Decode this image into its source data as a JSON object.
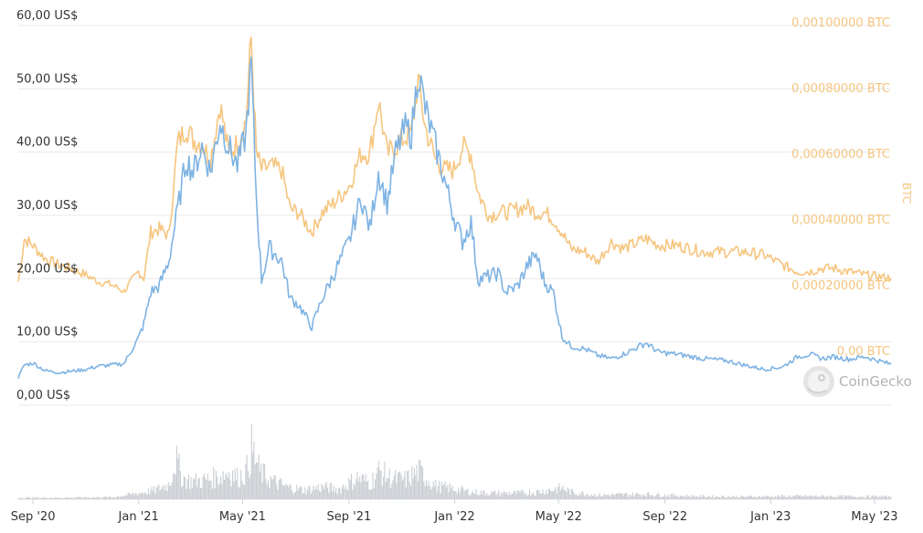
{
  "chart_data": {
    "type": "line",
    "title": "",
    "xlabel": "",
    "ylabel_left": "",
    "ylabel_right": "BTC",
    "watermark": "CoinGecko",
    "colors": {
      "usd_line": "#7eb3e3",
      "btc_line": "#f6c57f",
      "volume_bars": "#c9cdd2",
      "grid": "#e9e9e9",
      "left_tick_text": "#333333",
      "right_tick_text": "#f6c57f"
    },
    "x_range": [
      "2020-08-15",
      "2023-05-20"
    ],
    "x_ticks": [
      {
        "label": "Sep '20",
        "date": "2020-09-01"
      },
      {
        "label": "Jan '21",
        "date": "2021-01-01"
      },
      {
        "label": "May '21",
        "date": "2021-05-01"
      },
      {
        "label": "Sep '21",
        "date": "2021-09-01"
      },
      {
        "label": "Jan '22",
        "date": "2022-01-01"
      },
      {
        "label": "May '22",
        "date": "2022-05-01"
      },
      {
        "label": "Sep '22",
        "date": "2022-09-01"
      },
      {
        "label": "Jan '23",
        "date": "2023-01-01"
      },
      {
        "label": "May '23",
        "date": "2023-05-01"
      }
    ],
    "y_left": {
      "ylim": [
        0,
        60
      ],
      "ticks": [
        {
          "value": 0,
          "label": "0,00 US$"
        },
        {
          "value": 10,
          "label": "10,00 US$"
        },
        {
          "value": 20,
          "label": "20,00 US$"
        },
        {
          "value": 30,
          "label": "30,00 US$"
        },
        {
          "value": 40,
          "label": "40,00 US$"
        },
        {
          "value": 50,
          "label": "50,00 US$"
        },
        {
          "value": 60,
          "label": "60,00 US$"
        }
      ]
    },
    "y_right": {
      "ylim": [
        0,
        0.001
      ],
      "ticks": [
        {
          "value": 0,
          "label": "0,00 BTC"
        },
        {
          "value": 0.0002,
          "label": "0,00020000 BTC"
        },
        {
          "value": 0.0004,
          "label": "0,00040000 BTC"
        },
        {
          "value": 0.0006,
          "label": "0,00060000 BTC"
        },
        {
          "value": 0.0008,
          "label": "0,00080000 BTC"
        },
        {
          "value": 0.001,
          "label": "0,00100000 BTC"
        }
      ]
    },
    "series": [
      {
        "key": "usd",
        "axis": "left",
        "points": [
          [
            "2020-08-15",
            3.5
          ],
          [
            "2020-08-22",
            5.5
          ],
          [
            "2020-09-01",
            5.8
          ],
          [
            "2020-09-15",
            4.6
          ],
          [
            "2020-10-01",
            4.3
          ],
          [
            "2020-10-15",
            4.5
          ],
          [
            "2020-11-01",
            4.8
          ],
          [
            "2020-11-15",
            5.3
          ],
          [
            "2020-12-01",
            5.5
          ],
          [
            "2020-12-15",
            5.7
          ],
          [
            "2021-01-01",
            9.8
          ],
          [
            "2021-01-07",
            12.0
          ],
          [
            "2021-01-15",
            17.0
          ],
          [
            "2021-01-25",
            18.0
          ],
          [
            "2021-02-05",
            22.0
          ],
          [
            "2021-02-15",
            30.0
          ],
          [
            "2021-02-25",
            38.0
          ],
          [
            "2021-03-05",
            36.0
          ],
          [
            "2021-03-15",
            40.0
          ],
          [
            "2021-03-25",
            36.0
          ],
          [
            "2021-04-05",
            44.0
          ],
          [
            "2021-04-15",
            40.0
          ],
          [
            "2021-04-25",
            37.0
          ],
          [
            "2021-05-05",
            42.0
          ],
          [
            "2021-05-11",
            53.0
          ],
          [
            "2021-05-17",
            32.0
          ],
          [
            "2021-05-23",
            19.0
          ],
          [
            "2021-06-01",
            24.0
          ],
          [
            "2021-06-15",
            22.0
          ],
          [
            "2021-06-25",
            16.0
          ],
          [
            "2021-07-05",
            15.0
          ],
          [
            "2021-07-20",
            11.5
          ],
          [
            "2021-08-01",
            16.0
          ],
          [
            "2021-08-15",
            20.0
          ],
          [
            "2021-09-01",
            25.0
          ],
          [
            "2021-09-15",
            32.0
          ],
          [
            "2021-09-25",
            27.0
          ],
          [
            "2021-10-05",
            36.0
          ],
          [
            "2021-10-15",
            31.0
          ],
          [
            "2021-10-25",
            39.0
          ],
          [
            "2021-11-05",
            43.0
          ],
          [
            "2021-11-12",
            42.0
          ],
          [
            "2021-11-20",
            52.0
          ],
          [
            "2021-11-28",
            46.0
          ],
          [
            "2021-12-10",
            40.0
          ],
          [
            "2021-12-20",
            35.0
          ],
          [
            "2021-12-31",
            29.0
          ],
          [
            "2022-01-10",
            25.0
          ],
          [
            "2022-01-20",
            28.0
          ],
          [
            "2022-01-28",
            19.0
          ],
          [
            "2022-02-10",
            19.5
          ],
          [
            "2022-02-20",
            20.0
          ],
          [
            "2022-03-01",
            17.0
          ],
          [
            "2022-03-15",
            18.0
          ],
          [
            "2022-03-25",
            21.0
          ],
          [
            "2022-04-05",
            23.0
          ],
          [
            "2022-04-15",
            18.5
          ],
          [
            "2022-04-25",
            17.0
          ],
          [
            "2022-05-05",
            10.0
          ],
          [
            "2022-05-15",
            8.5
          ],
          [
            "2022-06-01",
            8.0
          ],
          [
            "2022-06-15",
            7.0
          ],
          [
            "2022-07-01",
            6.5
          ],
          [
            "2022-07-15",
            7.2
          ],
          [
            "2022-08-10",
            9.0
          ],
          [
            "2022-08-25",
            7.5
          ],
          [
            "2022-09-15",
            7.2
          ],
          [
            "2022-10-15",
            6.5
          ],
          [
            "2022-11-10",
            6.2
          ],
          [
            "2022-12-01",
            5.5
          ],
          [
            "2022-12-25",
            4.8
          ],
          [
            "2023-01-15",
            5.2
          ],
          [
            "2023-02-01",
            6.8
          ],
          [
            "2023-02-15",
            7.2
          ],
          [
            "2023-03-01",
            6.5
          ],
          [
            "2023-03-15",
            6.8
          ],
          [
            "2023-04-01",
            6.4
          ],
          [
            "2023-04-20",
            6.8
          ],
          [
            "2023-05-20",
            5.6
          ]
        ]
      },
      {
        "key": "btc",
        "axis": "right",
        "points": [
          [
            "2020-08-15",
            0.00021
          ],
          [
            "2020-08-22",
            0.00034
          ],
          [
            "2020-09-01",
            0.00032
          ],
          [
            "2020-09-15",
            0.00028
          ],
          [
            "2020-10-01",
            0.00026
          ],
          [
            "2020-10-15",
            0.00025
          ],
          [
            "2020-11-01",
            0.00023
          ],
          [
            "2020-11-15",
            0.00021
          ],
          [
            "2020-12-01",
            0.0002
          ],
          [
            "2020-12-15",
            0.00018
          ],
          [
            "2021-01-01",
            0.00024
          ],
          [
            "2021-01-07",
            0.00022
          ],
          [
            "2021-01-15",
            0.00036
          ],
          [
            "2021-01-25",
            0.00037
          ],
          [
            "2021-02-05",
            0.00035
          ],
          [
            "2021-02-15",
            0.00063
          ],
          [
            "2021-02-25",
            0.00068
          ],
          [
            "2021-03-05",
            0.00064
          ],
          [
            "2021-03-15",
            0.00063
          ],
          [
            "2021-03-25",
            0.00058
          ],
          [
            "2021-04-05",
            0.00075
          ],
          [
            "2021-04-15",
            0.0006
          ],
          [
            "2021-04-25",
            0.00063
          ],
          [
            "2021-05-05",
            0.0007
          ],
          [
            "2021-05-11",
            0.00095
          ],
          [
            "2021-05-17",
            0.0006
          ],
          [
            "2021-05-23",
            0.00055
          ],
          [
            "2021-06-01",
            0.00056
          ],
          [
            "2021-06-15",
            0.00055
          ],
          [
            "2021-06-25",
            0.00043
          ],
          [
            "2021-07-05",
            0.00042
          ],
          [
            "2021-07-20",
            0.00036
          ],
          [
            "2021-08-01",
            0.00042
          ],
          [
            "2021-08-15",
            0.00045
          ],
          [
            "2021-09-01",
            0.0005
          ],
          [
            "2021-09-15",
            0.0006
          ],
          [
            "2021-09-25",
            0.0006
          ],
          [
            "2021-10-05",
            0.00076
          ],
          [
            "2021-10-15",
            0.0006
          ],
          [
            "2021-10-25",
            0.00062
          ],
          [
            "2021-11-05",
            0.00065
          ],
          [
            "2021-11-12",
            0.00066
          ],
          [
            "2021-11-20",
            0.00082
          ],
          [
            "2021-11-28",
            0.00068
          ],
          [
            "2021-12-10",
            0.00058
          ],
          [
            "2021-12-20",
            0.00055
          ],
          [
            "2021-12-31",
            0.00055
          ],
          [
            "2022-01-10",
            0.00062
          ],
          [
            "2022-01-20",
            0.0006
          ],
          [
            "2022-01-28",
            0.00048
          ],
          [
            "2022-02-10",
            0.00041
          ],
          [
            "2022-02-20",
            0.00042
          ],
          [
            "2022-03-01",
            0.00042
          ],
          [
            "2022-03-15",
            0.00043
          ],
          [
            "2022-03-25",
            0.00044
          ],
          [
            "2022-04-05",
            0.00042
          ],
          [
            "2022-04-15",
            0.00042
          ],
          [
            "2022-04-25",
            0.0004
          ],
          [
            "2022-05-05",
            0.00036
          ],
          [
            "2022-05-15",
            0.00031
          ],
          [
            "2022-06-01",
            0.0003
          ],
          [
            "2022-06-15",
            0.00027
          ],
          [
            "2022-07-01",
            0.00033
          ],
          [
            "2022-07-15",
            0.00031
          ],
          [
            "2022-08-10",
            0.00034
          ],
          [
            "2022-08-25",
            0.00032
          ],
          [
            "2022-09-15",
            0.00032
          ],
          [
            "2022-10-15",
            0.0003
          ],
          [
            "2022-11-10",
            0.0003
          ],
          [
            "2022-12-01",
            0.0003
          ],
          [
            "2022-12-25",
            0.00029
          ],
          [
            "2023-01-15",
            0.00026
          ],
          [
            "2023-02-01",
            0.00024
          ],
          [
            "2023-02-15",
            0.00024
          ],
          [
            "2023-03-01",
            0.00025
          ],
          [
            "2023-03-15",
            0.00025
          ],
          [
            "2023-04-01",
            0.00024
          ],
          [
            "2023-04-20",
            0.00023
          ],
          [
            "2023-05-20",
            0.00022
          ]
        ]
      }
    ],
    "volume_relative": [
      [
        "2020-08-15",
        0.03
      ],
      [
        "2020-10-01",
        0.03
      ],
      [
        "2020-12-01",
        0.04
      ],
      [
        "2021-01-01",
        0.12
      ],
      [
        "2021-01-20",
        0.18
      ],
      [
        "2021-02-05",
        0.3
      ],
      [
        "2021-02-12",
        0.8
      ],
      [
        "2021-02-20",
        0.42
      ],
      [
        "2021-03-01",
        0.35
      ],
      [
        "2021-03-20",
        0.38
      ],
      [
        "2021-04-05",
        0.45
      ],
      [
        "2021-04-15",
        0.55
      ],
      [
        "2021-04-25",
        0.42
      ],
      [
        "2021-05-05",
        0.55
      ],
      [
        "2021-05-11",
        1.0
      ],
      [
        "2021-05-20",
        0.55
      ],
      [
        "2021-06-01",
        0.38
      ],
      [
        "2021-06-20",
        0.24
      ],
      [
        "2021-07-10",
        0.18
      ],
      [
        "2021-08-01",
        0.24
      ],
      [
        "2021-08-20",
        0.2
      ],
      [
        "2021-09-10",
        0.42
      ],
      [
        "2021-09-25",
        0.32
      ],
      [
        "2021-10-05",
        0.55
      ],
      [
        "2021-10-20",
        0.4
      ],
      [
        "2021-11-05",
        0.38
      ],
      [
        "2021-11-20",
        0.55
      ],
      [
        "2021-12-10",
        0.26
      ],
      [
        "2022-01-01",
        0.2
      ],
      [
        "2022-01-20",
        0.14
      ],
      [
        "2022-02-15",
        0.12
      ],
      [
        "2022-03-15",
        0.12
      ],
      [
        "2022-04-05",
        0.14
      ],
      [
        "2022-05-05",
        0.22
      ],
      [
        "2022-05-15",
        0.14
      ],
      [
        "2022-06-15",
        0.08
      ],
      [
        "2022-08-10",
        0.1
      ],
      [
        "2022-10-01",
        0.06
      ],
      [
        "2022-12-01",
        0.05
      ],
      [
        "2023-01-15",
        0.06
      ],
      [
        "2023-03-01",
        0.06
      ],
      [
        "2023-05-20",
        0.05
      ]
    ]
  }
}
